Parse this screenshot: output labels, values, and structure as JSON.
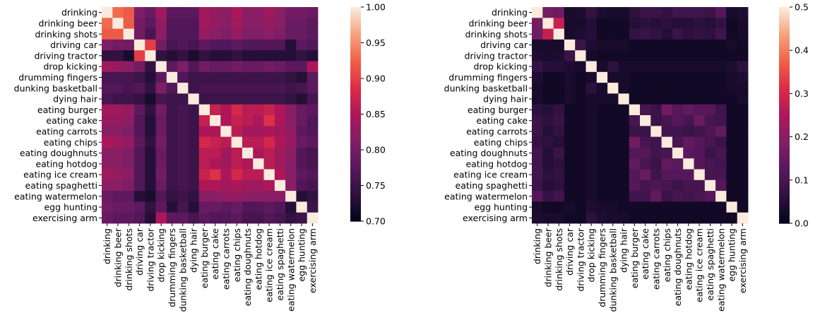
{
  "chart_data": [
    {
      "type": "heatmap",
      "title": "",
      "xlabel": "",
      "ylabel": "",
      "categories": [
        "drinking",
        "drinking beer",
        "drinking shots",
        "driving car",
        "driving tractor",
        "drop kicking",
        "drumming fingers",
        "dunking basketball",
        "dying hair",
        "eating burger",
        "eating cake",
        "eating carrots",
        "eating chips",
        "eating doughnuts",
        "eating hotdog",
        "eating ice cream",
        "eating spaghetti",
        "eating watermelon",
        "egg hunting",
        "exercising arm"
      ],
      "colorbar": {
        "vmin": 0.7,
        "vmax": 1.0,
        "ticks": [
          0.7,
          0.75,
          0.8,
          0.85,
          0.9,
          0.95,
          1.0
        ],
        "tick_labels": [
          "0.70",
          "0.75",
          "0.80",
          "0.85",
          "0.90",
          "0.95",
          "1.00"
        ]
      },
      "matrix": [
        [
          1.0,
          0.93,
          0.92,
          0.81,
          0.79,
          0.84,
          0.78,
          0.78,
          0.78,
          0.84,
          0.83,
          0.82,
          0.85,
          0.82,
          0.82,
          0.84,
          0.82,
          0.8,
          0.8,
          0.79
        ],
        [
          0.93,
          1.0,
          0.92,
          0.8,
          0.78,
          0.83,
          0.77,
          0.77,
          0.77,
          0.84,
          0.83,
          0.82,
          0.84,
          0.82,
          0.82,
          0.83,
          0.82,
          0.79,
          0.79,
          0.78
        ],
        [
          0.92,
          0.92,
          1.0,
          0.8,
          0.76,
          0.82,
          0.77,
          0.77,
          0.77,
          0.83,
          0.82,
          0.81,
          0.83,
          0.81,
          0.81,
          0.82,
          0.81,
          0.79,
          0.79,
          0.78
        ],
        [
          0.81,
          0.8,
          0.8,
          1.0,
          0.9,
          0.8,
          0.76,
          0.77,
          0.76,
          0.78,
          0.77,
          0.77,
          0.78,
          0.77,
          0.77,
          0.77,
          0.77,
          0.73,
          0.78,
          0.77
        ],
        [
          0.74,
          0.74,
          0.72,
          0.9,
          1.0,
          0.74,
          0.73,
          0.74,
          0.72,
          0.74,
          0.73,
          0.73,
          0.74,
          0.73,
          0.73,
          0.73,
          0.73,
          0.73,
          0.74,
          0.73
        ],
        [
          0.84,
          0.83,
          0.82,
          0.8,
          0.74,
          1.0,
          0.78,
          0.81,
          0.77,
          0.8,
          0.79,
          0.79,
          0.8,
          0.79,
          0.79,
          0.8,
          0.79,
          0.78,
          0.78,
          0.85
        ],
        [
          0.76,
          0.76,
          0.76,
          0.75,
          0.73,
          0.78,
          1.0,
          0.77,
          0.75,
          0.75,
          0.75,
          0.75,
          0.75,
          0.75,
          0.75,
          0.75,
          0.75,
          0.74,
          0.73,
          0.78
        ],
        [
          0.77,
          0.77,
          0.76,
          0.77,
          0.74,
          0.81,
          0.77,
          1.0,
          0.75,
          0.76,
          0.76,
          0.76,
          0.76,
          0.76,
          0.76,
          0.76,
          0.76,
          0.75,
          0.76,
          0.78
        ],
        [
          0.76,
          0.75,
          0.75,
          0.74,
          0.72,
          0.76,
          0.75,
          0.75,
          1.0,
          0.75,
          0.75,
          0.75,
          0.75,
          0.75,
          0.75,
          0.75,
          0.75,
          0.74,
          0.73,
          0.76
        ],
        [
          0.84,
          0.84,
          0.83,
          0.78,
          0.74,
          0.8,
          0.75,
          0.76,
          0.75,
          1.0,
          0.87,
          0.85,
          0.88,
          0.86,
          0.86,
          0.87,
          0.85,
          0.82,
          0.79,
          0.78
        ],
        [
          0.83,
          0.83,
          0.82,
          0.77,
          0.73,
          0.79,
          0.75,
          0.76,
          0.75,
          0.87,
          1.0,
          0.85,
          0.87,
          0.86,
          0.85,
          0.89,
          0.85,
          0.82,
          0.79,
          0.77
        ],
        [
          0.82,
          0.82,
          0.81,
          0.77,
          0.73,
          0.79,
          0.75,
          0.76,
          0.75,
          0.85,
          0.85,
          1.0,
          0.86,
          0.84,
          0.84,
          0.85,
          0.84,
          0.83,
          0.78,
          0.77
        ],
        [
          0.85,
          0.84,
          0.83,
          0.78,
          0.74,
          0.8,
          0.75,
          0.76,
          0.75,
          0.88,
          0.87,
          0.86,
          1.0,
          0.86,
          0.86,
          0.88,
          0.85,
          0.83,
          0.79,
          0.78
        ],
        [
          0.82,
          0.82,
          0.81,
          0.77,
          0.73,
          0.79,
          0.75,
          0.76,
          0.75,
          0.86,
          0.86,
          0.84,
          0.86,
          1.0,
          0.85,
          0.86,
          0.84,
          0.82,
          0.77,
          0.76
        ],
        [
          0.82,
          0.82,
          0.81,
          0.77,
          0.73,
          0.79,
          0.75,
          0.76,
          0.75,
          0.86,
          0.85,
          0.84,
          0.86,
          0.85,
          1.0,
          0.86,
          0.84,
          0.82,
          0.77,
          0.76
        ],
        [
          0.84,
          0.83,
          0.82,
          0.77,
          0.73,
          0.8,
          0.75,
          0.76,
          0.75,
          0.87,
          0.89,
          0.85,
          0.88,
          0.86,
          0.86,
          1.0,
          0.85,
          0.82,
          0.78,
          0.77
        ],
        [
          0.82,
          0.82,
          0.81,
          0.77,
          0.73,
          0.79,
          0.75,
          0.76,
          0.75,
          0.85,
          0.85,
          0.84,
          0.85,
          0.84,
          0.84,
          0.85,
          1.0,
          0.82,
          0.77,
          0.76
        ],
        [
          0.79,
          0.78,
          0.78,
          0.73,
          0.72,
          0.77,
          0.74,
          0.75,
          0.74,
          0.82,
          0.82,
          0.83,
          0.83,
          0.82,
          0.82,
          0.82,
          0.82,
          1.0,
          0.73,
          0.74
        ],
        [
          0.8,
          0.79,
          0.79,
          0.78,
          0.74,
          0.78,
          0.73,
          0.76,
          0.73,
          0.79,
          0.79,
          0.78,
          0.79,
          0.77,
          0.77,
          0.78,
          0.77,
          0.73,
          1.0,
          0.75
        ],
        [
          0.79,
          0.78,
          0.78,
          0.77,
          0.73,
          0.85,
          0.78,
          0.78,
          0.76,
          0.78,
          0.77,
          0.77,
          0.78,
          0.76,
          0.76,
          0.77,
          0.76,
          0.74,
          0.75,
          1.0
        ]
      ]
    },
    {
      "type": "heatmap",
      "title": "",
      "xlabel": "",
      "ylabel": "",
      "categories": [
        "drinking",
        "drinking beer",
        "drinking shots",
        "driving car",
        "driving tractor",
        "drop kicking",
        "drumming fingers",
        "dunking basketball",
        "dying hair",
        "eating burger",
        "eating cake",
        "eating carrots",
        "eating chips",
        "eating doughnuts",
        "eating hotdog",
        "eating ice cream",
        "eating spaghetti",
        "eating watermelon",
        "egg hunting",
        "exercising arm"
      ],
      "colorbar": {
        "vmin": 0.0,
        "vmax": 0.5,
        "ticks": [
          0.0,
          0.1,
          0.2,
          0.3,
          0.4,
          0.5
        ],
        "tick_labels": [
          "0.0",
          "0.1",
          "0.2",
          "0.3",
          "0.4",
          "0.5"
        ]
      },
      "matrix": [
        [
          0.5,
          0.17,
          0.16,
          0.03,
          0.04,
          0.07,
          0.04,
          0.03,
          0.03,
          0.06,
          0.08,
          0.08,
          0.07,
          0.09,
          0.09,
          0.09,
          0.08,
          0.12,
          0.03,
          0.04
        ],
        [
          0.17,
          0.5,
          0.28,
          0.03,
          0.03,
          0.05,
          0.02,
          0.02,
          0.02,
          0.05,
          0.06,
          0.05,
          0.06,
          0.05,
          0.05,
          0.06,
          0.05,
          0.07,
          0.02,
          0.03
        ],
        [
          0.16,
          0.28,
          0.5,
          0.03,
          0.04,
          0.05,
          0.02,
          0.02,
          0.02,
          0.07,
          0.08,
          0.07,
          0.05,
          0.08,
          0.06,
          0.07,
          0.06,
          0.09,
          0.02,
          0.03
        ],
        [
          0.03,
          0.03,
          0.03,
          0.5,
          0.08,
          0.04,
          0.03,
          0.03,
          0.03,
          0.02,
          0.02,
          0.02,
          0.02,
          0.02,
          0.02,
          0.02,
          0.02,
          0.02,
          0.03,
          0.02
        ],
        [
          0.04,
          0.03,
          0.04,
          0.08,
          0.5,
          0.03,
          0.02,
          0.02,
          0.02,
          0.02,
          0.02,
          0.02,
          0.02,
          0.02,
          0.02,
          0.02,
          0.02,
          0.02,
          0.02,
          0.02
        ],
        [
          0.07,
          0.05,
          0.05,
          0.04,
          0.03,
          0.5,
          0.03,
          0.06,
          0.03,
          0.03,
          0.03,
          0.03,
          0.03,
          0.03,
          0.03,
          0.03,
          0.03,
          0.03,
          0.04,
          0.06
        ],
        [
          0.04,
          0.02,
          0.02,
          0.03,
          0.02,
          0.03,
          0.5,
          0.03,
          0.03,
          0.02,
          0.02,
          0.02,
          0.02,
          0.02,
          0.02,
          0.02,
          0.02,
          0.02,
          0.03,
          0.04
        ],
        [
          0.03,
          0.02,
          0.02,
          0.03,
          0.02,
          0.06,
          0.03,
          0.5,
          0.03,
          0.02,
          0.02,
          0.02,
          0.02,
          0.02,
          0.02,
          0.02,
          0.02,
          0.02,
          0.03,
          0.03
        ],
        [
          0.03,
          0.02,
          0.02,
          0.03,
          0.02,
          0.03,
          0.03,
          0.03,
          0.5,
          0.02,
          0.02,
          0.02,
          0.02,
          0.02,
          0.02,
          0.02,
          0.02,
          0.02,
          0.02,
          0.03
        ],
        [
          0.06,
          0.05,
          0.07,
          0.02,
          0.02,
          0.03,
          0.02,
          0.02,
          0.02,
          0.5,
          0.1,
          0.08,
          0.16,
          0.12,
          0.14,
          0.12,
          0.12,
          0.09,
          0.02,
          0.02
        ],
        [
          0.08,
          0.06,
          0.08,
          0.02,
          0.02,
          0.03,
          0.02,
          0.02,
          0.02,
          0.1,
          0.5,
          0.08,
          0.1,
          0.12,
          0.1,
          0.15,
          0.1,
          0.09,
          0.02,
          0.02
        ],
        [
          0.08,
          0.05,
          0.07,
          0.02,
          0.02,
          0.03,
          0.02,
          0.02,
          0.02,
          0.08,
          0.08,
          0.5,
          0.09,
          0.09,
          0.08,
          0.09,
          0.11,
          0.14,
          0.02,
          0.02
        ],
        [
          0.07,
          0.06,
          0.05,
          0.02,
          0.02,
          0.03,
          0.02,
          0.02,
          0.02,
          0.16,
          0.1,
          0.09,
          0.5,
          0.1,
          0.14,
          0.12,
          0.1,
          0.08,
          0.02,
          0.02
        ],
        [
          0.09,
          0.05,
          0.08,
          0.02,
          0.02,
          0.03,
          0.02,
          0.02,
          0.02,
          0.12,
          0.12,
          0.09,
          0.1,
          0.5,
          0.13,
          0.12,
          0.08,
          0.1,
          0.02,
          0.02
        ],
        [
          0.09,
          0.05,
          0.06,
          0.02,
          0.02,
          0.03,
          0.02,
          0.02,
          0.02,
          0.14,
          0.1,
          0.08,
          0.14,
          0.13,
          0.5,
          0.12,
          0.1,
          0.09,
          0.02,
          0.02
        ],
        [
          0.09,
          0.06,
          0.07,
          0.02,
          0.02,
          0.03,
          0.02,
          0.02,
          0.02,
          0.12,
          0.15,
          0.09,
          0.12,
          0.12,
          0.12,
          0.5,
          0.1,
          0.1,
          0.02,
          0.02
        ],
        [
          0.08,
          0.05,
          0.06,
          0.02,
          0.02,
          0.03,
          0.02,
          0.02,
          0.02,
          0.12,
          0.1,
          0.11,
          0.1,
          0.08,
          0.1,
          0.1,
          0.5,
          0.12,
          0.02,
          0.02
        ],
        [
          0.12,
          0.07,
          0.09,
          0.02,
          0.02,
          0.03,
          0.02,
          0.02,
          0.02,
          0.09,
          0.09,
          0.14,
          0.08,
          0.1,
          0.09,
          0.1,
          0.12,
          0.5,
          0.02,
          0.02
        ],
        [
          0.03,
          0.02,
          0.02,
          0.03,
          0.02,
          0.04,
          0.03,
          0.03,
          0.02,
          0.02,
          0.02,
          0.02,
          0.02,
          0.02,
          0.02,
          0.02,
          0.02,
          0.02,
          0.5,
          0.02
        ],
        [
          0.04,
          0.03,
          0.03,
          0.02,
          0.02,
          0.06,
          0.04,
          0.03,
          0.03,
          0.02,
          0.02,
          0.02,
          0.02,
          0.02,
          0.02,
          0.02,
          0.02,
          0.02,
          0.02,
          0.5
        ]
      ]
    }
  ]
}
